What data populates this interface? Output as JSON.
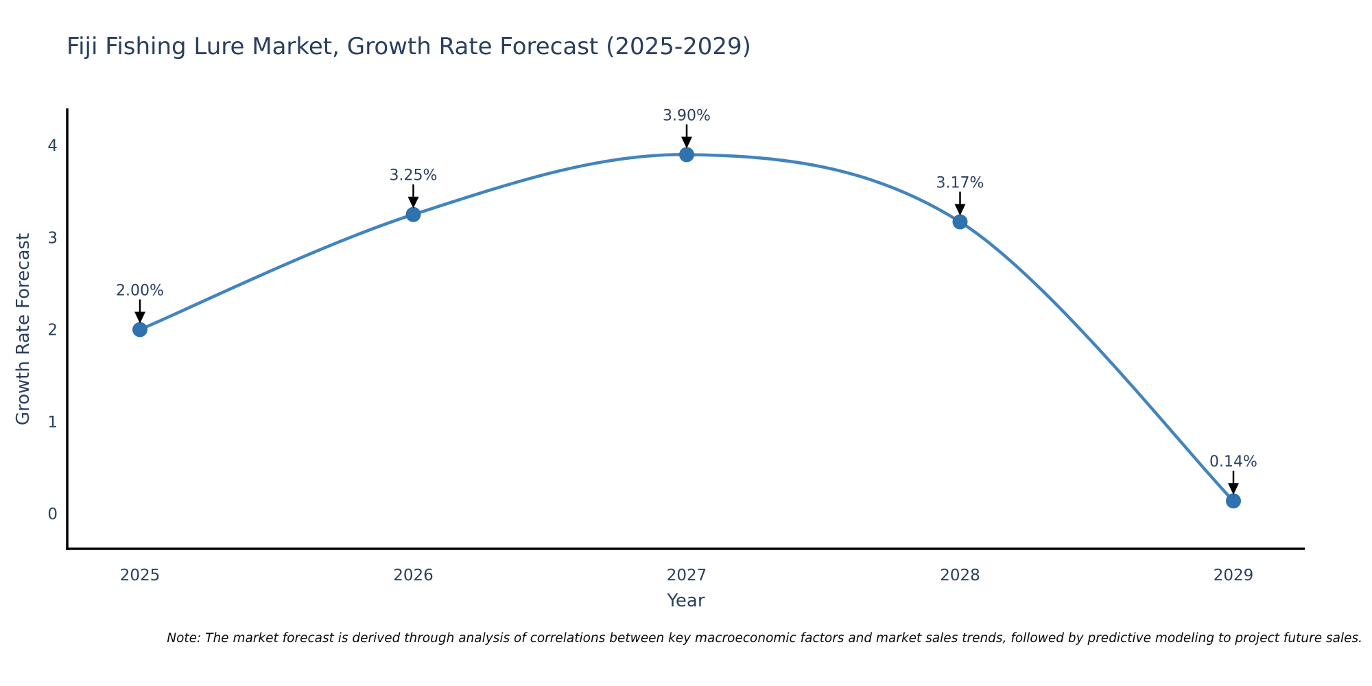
{
  "title": "Fiji Fishing Lure Market, Growth Rate Forecast (2025-2029)",
  "note": "Note: The market forecast is derived through analysis of correlations between key macroeconomic factors and market sales trends, followed by predictive modeling to project future sales.",
  "chart_data": {
    "type": "line",
    "title": "Fiji Fishing Lure Market, Growth Rate Forecast (2025-2029)",
    "xlabel": "Year",
    "ylabel": "Growth Rate Forecast",
    "x": [
      2025,
      2026,
      2027,
      2028,
      2029
    ],
    "values": [
      2.0,
      3.25,
      3.9,
      3.17,
      0.14
    ],
    "point_labels": [
      "2.00%",
      "3.25%",
      "3.90%",
      "3.17%",
      "0.14%"
    ],
    "xticks": [
      "2025",
      "2026",
      "2027",
      "2028",
      "2029"
    ],
    "yticks": [
      0,
      1,
      2,
      3,
      4
    ],
    "ylim": [
      -0.38,
      4.39
    ],
    "line_shape": "spline",
    "grid": false,
    "legend": "none",
    "colors": {
      "line": "#4284bd",
      "marker": "#2f72ae",
      "axis": "#000000",
      "text": "#2a3f5f",
      "annotation_text": "#2a3f5f",
      "arrow": "#000000",
      "background": "#ffffff"
    }
  }
}
